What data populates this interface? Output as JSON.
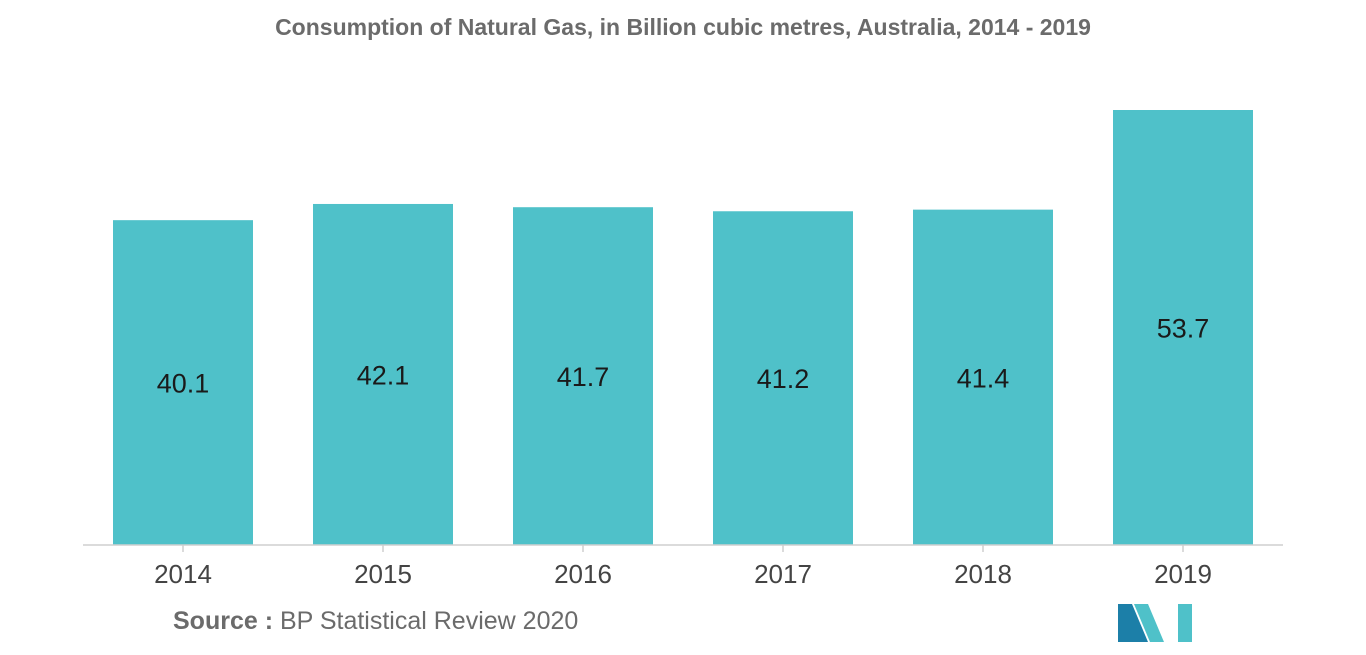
{
  "chart_data": {
    "type": "bar",
    "title": "Consumption of Natural Gas, in Billion cubic metres, Australia, 2014 - 2019",
    "categories": [
      "2014",
      "2015",
      "2016",
      "2017",
      "2018",
      "2019"
    ],
    "values": [
      40.1,
      42.1,
      41.7,
      41.2,
      41.4,
      53.7
    ],
    "value_labels": [
      "40.1",
      "42.1",
      "41.7",
      "41.2",
      "41.4",
      "53.7"
    ],
    "xlabel": "",
    "ylabel": "",
    "ylim": [
      0,
      53.7
    ],
    "grid": false,
    "legend": "none",
    "colors": {
      "bar": "#4fc1c9",
      "axis": "#cfcfcf",
      "text": "#1a1a1a",
      "tick": "#444444"
    }
  },
  "source": {
    "label": "Source :",
    "text": "BP Statistical Review 2020"
  },
  "logo": {
    "colors": [
      "#1c7fa8",
      "#4fc1c9"
    ]
  }
}
